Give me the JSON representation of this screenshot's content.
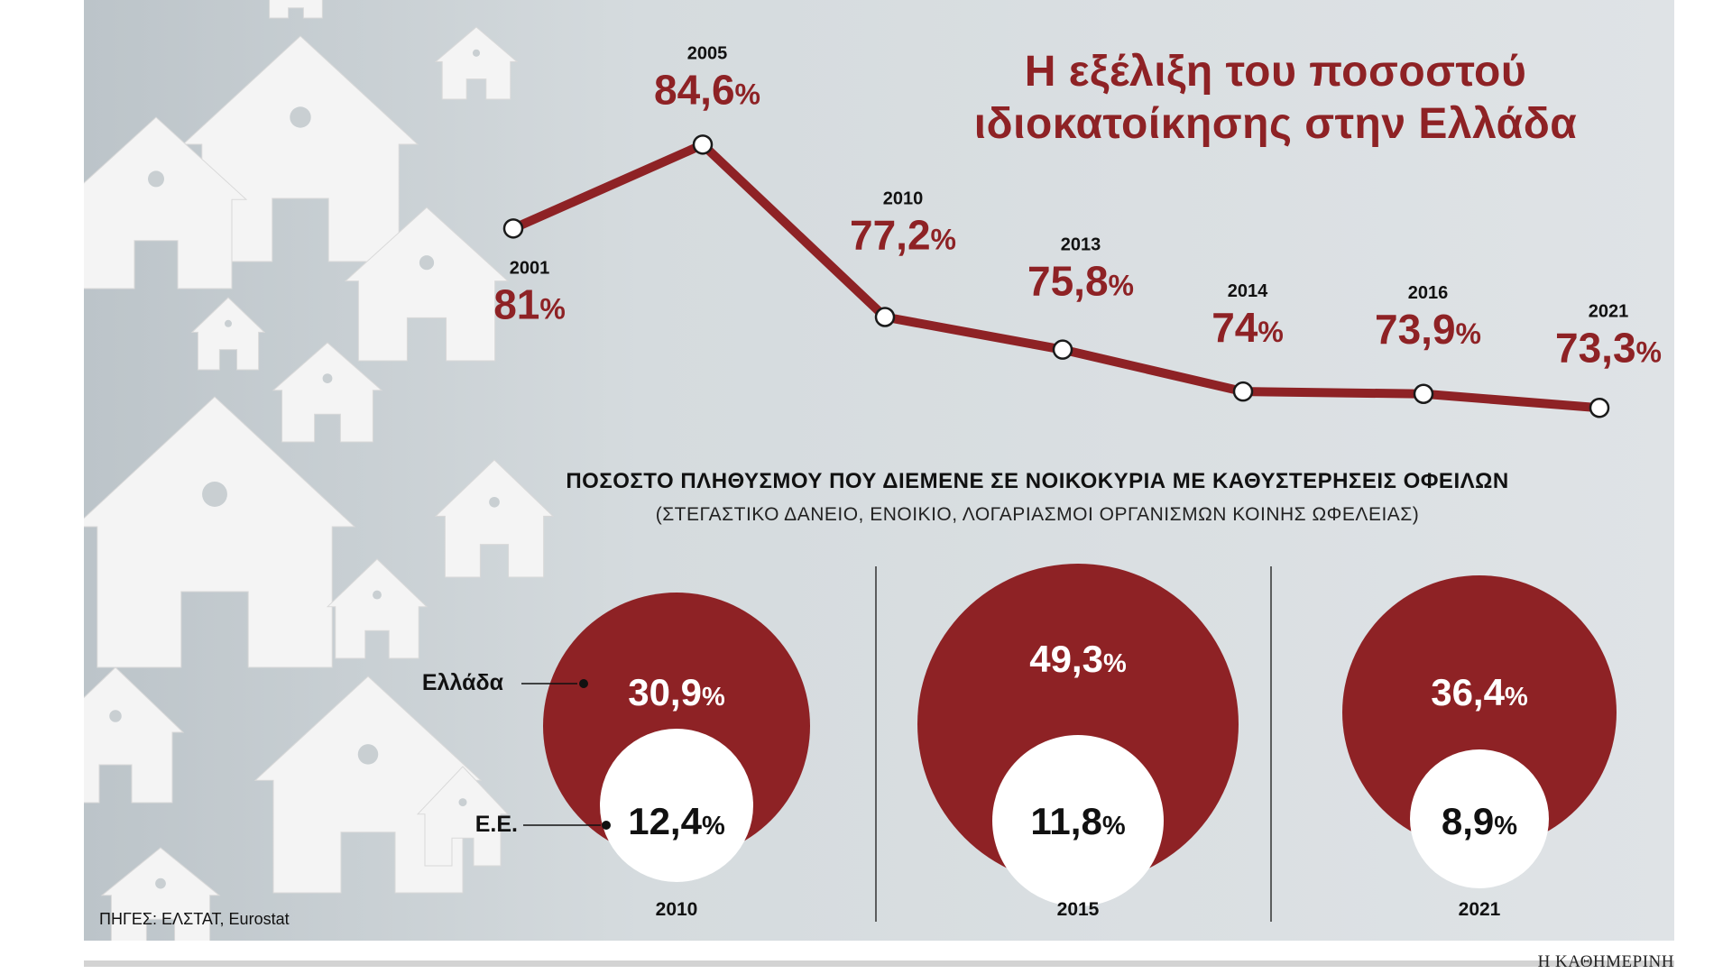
{
  "chart_data": [
    {
      "type": "line",
      "title": "Η εξέλιξη του ποσοστού ιδιοκατοίκησης στην Ελλάδα",
      "x": [
        "2001",
        "2005",
        "2010",
        "2013",
        "2014",
        "2016",
        "2021"
      ],
      "values": [
        81,
        84.6,
        77.2,
        75.8,
        74,
        73.9,
        73.3
      ],
      "value_labels": [
        "81",
        "84,6",
        "77,2",
        "75,8",
        "74",
        "73,9",
        "73,3"
      ],
      "unit": "%",
      "grid": false
    },
    {
      "type": "nested-circles",
      "title": "ΠΟΣΟΣΤΟ ΠΛΗΘΥΣΜΟΥ ΠΟΥ ΔΙΕΜΕΝΕ ΣΕ ΝΟΙΚΟΚΥΡΙΑ ΜΕ ΚΑΘΥΣΤΕΡΗΣΕΙΣ ΟΦΕΙΛΩΝ",
      "subtitle": "(ΣΤΕΓΑΣΤΙΚΟ ΔΑΝΕΙΟ, ΕΝΟΙΚΙΟ, ΛΟΓΑΡΙΑΣΜΟΙ ΟΡΓΑΝΙΣΜΩΝ ΚΟΙΝΗΣ ΩΦΕΛΕΙΑΣ)",
      "categories": [
        "2010",
        "2015",
        "2021"
      ],
      "series": [
        {
          "name": "Ελλάδα",
          "values": [
            30.9,
            49.3,
            36.4
          ],
          "labels": [
            "30,9",
            "49,3",
            "36,4"
          ]
        },
        {
          "name": "Ε.Ε.",
          "values": [
            12.4,
            11.8,
            8.9
          ],
          "labels": [
            "12,4",
            "11,8",
            "8,9"
          ]
        }
      ],
      "unit": "%"
    }
  ],
  "sources": "ΠΗΓΕΣ: ΕΛΣΤΑΤ, Eurostat",
  "credit": "Η ΚΑΘΗΜΕΡΙΝΗ",
  "title_line1": "Η εξέλιξη του ποσοστού",
  "title_line2": "ιδιοκατοίκησης στην Ελλάδα",
  "colors": {
    "accent": "#8e2225",
    "background": "#d9dee1",
    "house": "#f4f4f4"
  }
}
